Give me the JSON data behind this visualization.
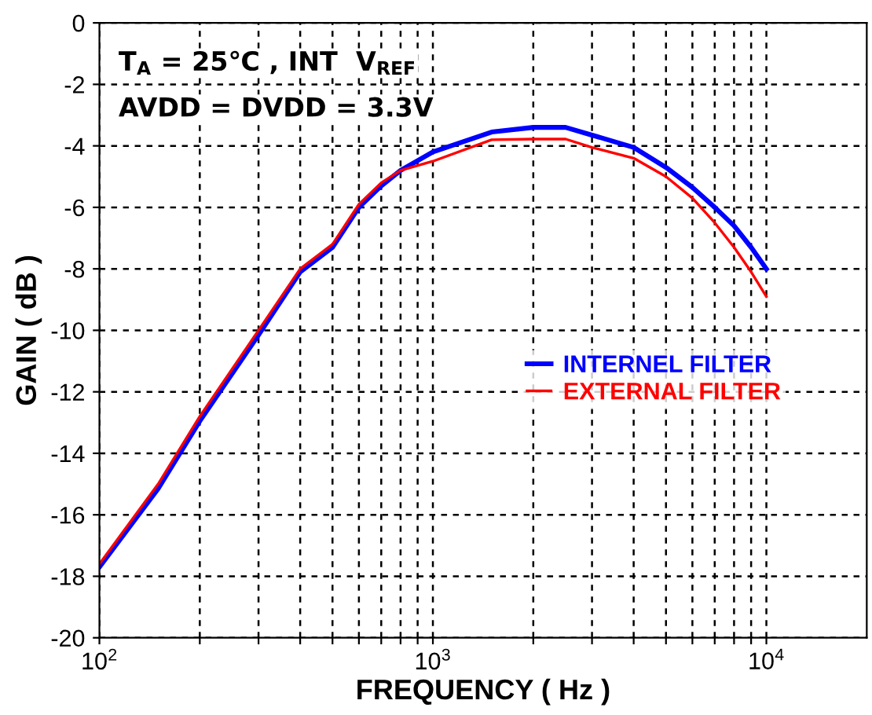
{
  "chart_data": {
    "type": "line",
    "xlabel": "FREQUENCY ( Hz )",
    "ylabel": "GAIN ( dB )",
    "annotations": [
      "T$_{A}$ = 25℃ , INT  V$_{REF}$",
      "AVDD = DVDD = 3.3V"
    ],
    "log": "x",
    "xlim": [
      100,
      20000
    ],
    "ylim": [
      -20,
      0
    ],
    "xticks": [
      {
        "value": 100,
        "label": "10$^{2}$"
      },
      {
        "value": 200,
        "label": null
      },
      {
        "value": 300,
        "label": null
      },
      {
        "value": 400,
        "label": null
      },
      {
        "value": 500,
        "label": null
      },
      {
        "value": 600,
        "label": null
      },
      {
        "value": 700,
        "label": null
      },
      {
        "value": 800,
        "label": null
      },
      {
        "value": 900,
        "label": null
      },
      {
        "value": 1000,
        "label": "10$^{3}$"
      },
      {
        "value": 2000,
        "label": null
      },
      {
        "value": 3000,
        "label": null
      },
      {
        "value": 4000,
        "label": null
      },
      {
        "value": 5000,
        "label": null
      },
      {
        "value": 6000,
        "label": null
      },
      {
        "value": 7000,
        "label": null
      },
      {
        "value": 8000,
        "label": null
      },
      {
        "value": 9000,
        "label": null
      },
      {
        "value": 10000,
        "label": "10$^{4}$"
      }
    ],
    "yticks": [
      0,
      -2,
      -4,
      -6,
      -8,
      -10,
      -12,
      -14,
      -16,
      -18,
      -20
    ],
    "grid": true,
    "legend": "right",
    "line_style": "solid",
    "marker": "none",
    "x": [
      100,
      150,
      200,
      300,
      400,
      500,
      600,
      700,
      800,
      1000,
      1500,
      2000,
      2500,
      3000,
      4000,
      5000,
      6000,
      7000,
      8000,
      9000,
      10000
    ],
    "series": [
      {
        "name": "INTERNEL FILTER",
        "color": "#0000ff",
        "values": [
          -17.7,
          -15.15,
          -12.95,
          -10.15,
          -8.1,
          -7.3,
          -6.0,
          -5.3,
          -4.8,
          -4.2,
          -3.55,
          -3.4,
          -3.4,
          -3.65,
          -4.05,
          -4.7,
          -5.35,
          -6.0,
          -6.6,
          -7.3,
          -8.0
        ]
      },
      {
        "name": "EXTERNAL FILTER",
        "color": "#ff0000",
        "values": [
          -17.6,
          -15.0,
          -12.8,
          -10.0,
          -8.0,
          -7.2,
          -5.9,
          -5.2,
          -4.8,
          -4.5,
          -3.8,
          -3.78,
          -3.78,
          -4.05,
          -4.4,
          -5.0,
          -5.7,
          -6.5,
          -7.3,
          -8.1,
          -8.9
        ]
      }
    ]
  }
}
